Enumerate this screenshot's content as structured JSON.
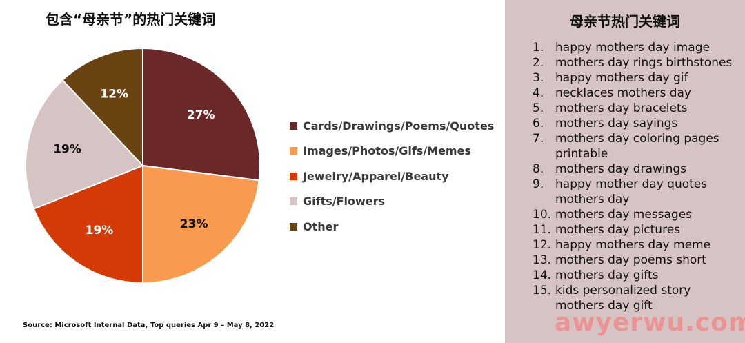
{
  "chart_title": "包含“母亲节”的热门关键词",
  "source": "Source: Microsoft Internal Data, Top queries Apr 9 – May 8, 2022",
  "chart_data": {
    "type": "pie",
    "title": "包含“母亲节”的热门关键词",
    "slices": [
      {
        "label": "Cards/Drawings/Poems/Quotes",
        "value": 27,
        "display": "27%",
        "color": "#6b2828",
        "label_color": "#ffffff"
      },
      {
        "label": "Images/Photos/Gifs/Memes",
        "value": 23,
        "display": "23%",
        "color": "#fa9a4e",
        "label_color": "#111111"
      },
      {
        "label": "Jewelry/Apparel/Beauty",
        "value": 19,
        "display": "19%",
        "color": "#d33a05",
        "label_color": "#ffffff"
      },
      {
        "label": "Gifts/Flowers",
        "value": 19,
        "display": "19%",
        "color": "#d6c3c3",
        "label_color": "#111111"
      },
      {
        "label": "Other",
        "value": 12,
        "display": "12%",
        "color": "#6a4312",
        "label_color": "#ffffff"
      }
    ],
    "legend_position": "right"
  },
  "panel": {
    "title": "母亲节热门关键词",
    "keywords": [
      {
        "num": "1.",
        "text": "happy mothers day image"
      },
      {
        "num": "2.",
        "text": "mothers day rings birthstones"
      },
      {
        "num": "3.",
        "text": "happy mothers day gif"
      },
      {
        "num": "4.",
        "text": "necklaces mothers day"
      },
      {
        "num": "5.",
        "text": "mothers day bracelets"
      },
      {
        "num": "6.",
        "text": "mothers day sayings"
      },
      {
        "num": "7.",
        "text": "mothers day coloring pages printable"
      },
      {
        "num": "8.",
        "text": "mothers day drawings"
      },
      {
        "num": "9.",
        "text": "happy mother day quotes mothers day"
      },
      {
        "num": "10.",
        "text": "mothers day messages"
      },
      {
        "num": "11.",
        "text": "mothers day pictures"
      },
      {
        "num": "12.",
        "text": "happy mothers day meme"
      },
      {
        "num": "13.",
        "text": "mothers day poems short"
      },
      {
        "num": "14.",
        "text": "mothers day gifts"
      },
      {
        "num": "15.",
        "text": "kids personalized story mothers day gift"
      }
    ]
  },
  "watermark": "awyerwu.com"
}
